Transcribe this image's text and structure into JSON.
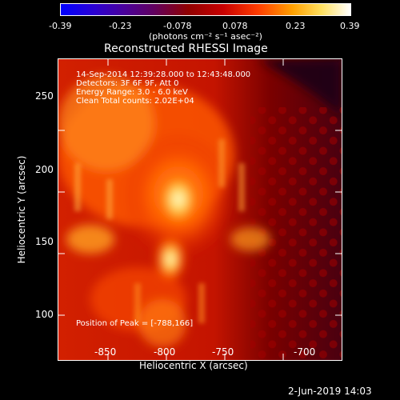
{
  "colorbar": {
    "tick_labels": [
      "-0.39",
      "-0.23",
      "-0.078",
      "0.078",
      "0.23",
      "0.39"
    ],
    "units_label": "(photons cm⁻² s⁻¹ asec⁻²)"
  },
  "title": "Reconstructed RHESSI Image",
  "info": {
    "line1": "14-Sep-2014 12:39:28.000 to 12:43:48.000",
    "line2": "Detectors: 3F 6F 9F, Att 0",
    "line3": "Energy Range: 3.0 - 6.0 keV",
    "line4": "Clean     Total counts: 2.02E+04"
  },
  "peak_label": "Position of Peak = [-788,166]",
  "axes": {
    "xlabel": "Heliocentric X (arcsec)",
    "ylabel": "Heliocentric Y (arcsec)",
    "xticks": [
      "-850",
      "-800",
      "-750",
      "-700"
    ],
    "yticks": [
      "100",
      "150",
      "200",
      "250"
    ]
  },
  "timestamp": "2-Jun-2019 14:03",
  "colors": {
    "background": "#000000",
    "text": "#ffffff"
  }
}
